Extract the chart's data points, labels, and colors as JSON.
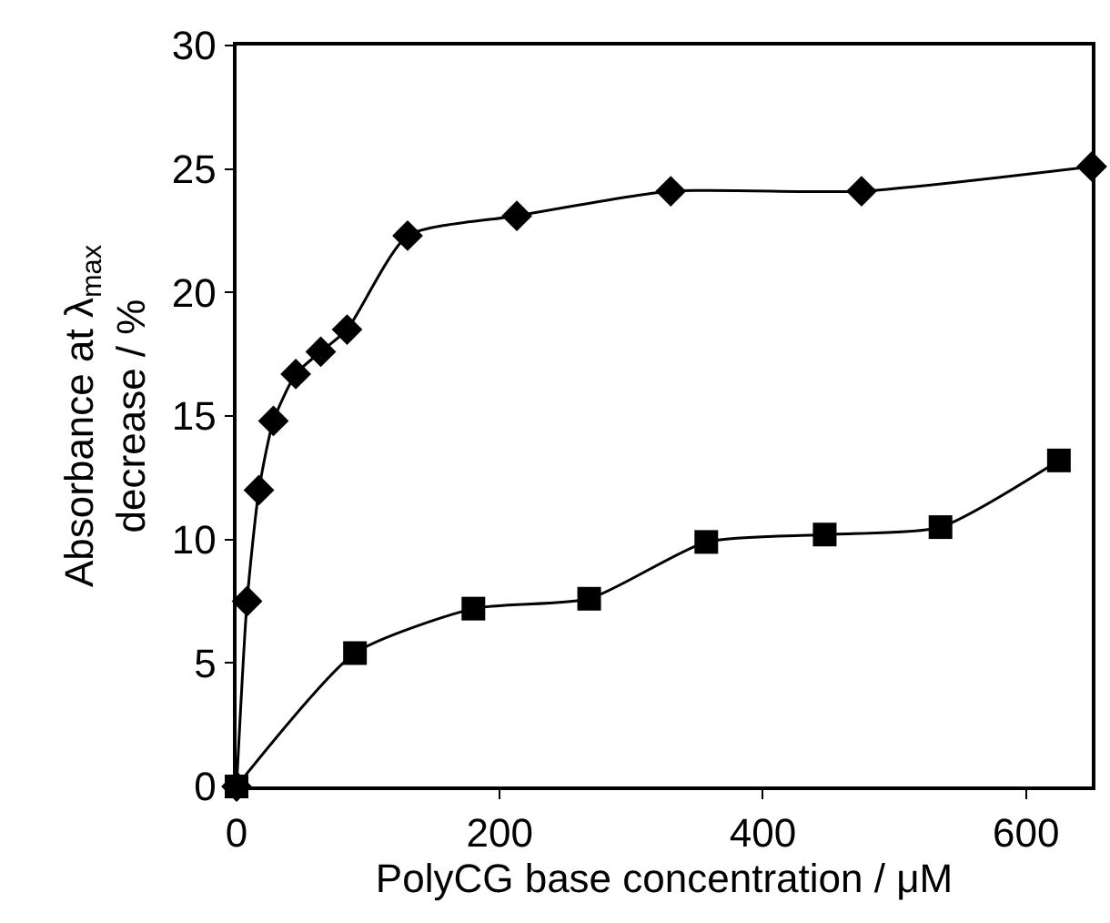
{
  "chart_data": {
    "type": "line",
    "xlabel": "PolyCG base concentration / μM",
    "ylabel": "Absorbance at λ$_{max}$\ndecrease / %",
    "xlim": [
      0,
      650
    ],
    "xticks": [
      0,
      200,
      400,
      600
    ],
    "ylim": [
      0,
      30
    ],
    "yticks": [
      0,
      5,
      10,
      15,
      20,
      25,
      30
    ],
    "legend": false,
    "line_style": "solid",
    "series": [
      {
        "color": "#000000",
        "marker": "diamond",
        "x": [
          0,
          8,
          17,
          28,
          45,
          64,
          84,
          130,
          213,
          330,
          475,
          650
        ],
        "values": [
          0,
          7.5,
          12,
          14.8,
          16.7,
          17.6,
          18.5,
          22.3,
          23.1,
          24.1,
          24.1,
          25.1
        ]
      },
      {
        "color": "#000000",
        "marker": "square",
        "x": [
          0,
          90,
          180,
          268,
          357,
          447,
          535,
          625
        ],
        "values": [
          0,
          5.4,
          7.2,
          7.6,
          9.9,
          10.2,
          10.5,
          13.2
        ]
      }
    ]
  }
}
